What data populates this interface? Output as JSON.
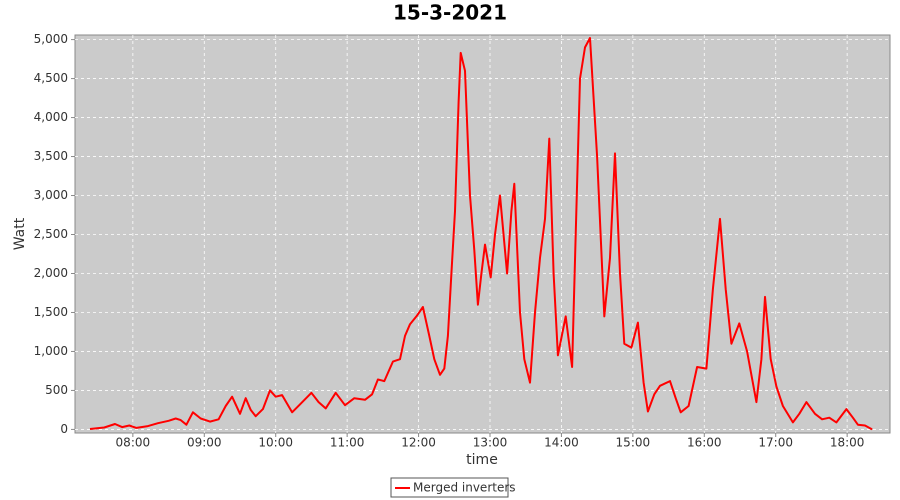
{
  "chart_data": {
    "type": "line",
    "title": "15-3-2021",
    "x_label": "time",
    "y_label": "Watt",
    "xlim": [
      7.19,
      18.6
    ],
    "xticks": [
      {
        "value": 8,
        "label": "08:00"
      },
      {
        "value": 9,
        "label": "09:00"
      },
      {
        "value": 10,
        "label": "10:00"
      },
      {
        "value": 11,
        "label": "11:00"
      },
      {
        "value": 12,
        "label": "12:00"
      },
      {
        "value": 13,
        "label": "13:00"
      },
      {
        "value": 14,
        "label": "14:00"
      },
      {
        "value": 15,
        "label": "15:00"
      },
      {
        "value": 16,
        "label": "16:00"
      },
      {
        "value": 17,
        "label": "17:00"
      },
      {
        "value": 18,
        "label": "18:00"
      }
    ],
    "ylim": [
      -46,
      5059
    ],
    "yticks": [
      0,
      500,
      {
        "value": 1000,
        "label": "1,000"
      },
      {
        "value": 1500,
        "label": "1,500"
      },
      {
        "value": 2000,
        "label": "2,000"
      },
      {
        "value": 2500,
        "label": "2,500"
      },
      {
        "value": 3000,
        "label": "3,000"
      },
      {
        "value": 3500,
        "label": "3,500"
      },
      {
        "value": 4000,
        "label": "4,000"
      },
      {
        "value": 4500,
        "label": "4,500"
      },
      {
        "value": 5000,
        "label": "5,000"
      }
    ],
    "grid": true,
    "legend": "bottom",
    "series": [
      {
        "name": "Merged inverters",
        "color": "#ff0000",
        "x": [
          7.4,
          7.5,
          7.6,
          7.75,
          7.85,
          7.95,
          8.05,
          8.2,
          8.35,
          8.5,
          8.6,
          8.67,
          8.75,
          8.84,
          8.95,
          9.08,
          9.2,
          9.3,
          9.39,
          9.5,
          9.58,
          9.65,
          9.72,
          9.82,
          9.92,
          10.0,
          10.09,
          10.23,
          10.35,
          10.5,
          10.6,
          10.7,
          10.84,
          10.97,
          11.1,
          11.25,
          11.35,
          11.43,
          11.52,
          11.64,
          11.74,
          11.81,
          11.88,
          11.97,
          12.06,
          12.15,
          12.22,
          12.3,
          12.36,
          12.41,
          12.46,
          12.51,
          12.56,
          12.59,
          12.65,
          12.72,
          12.78,
          12.83,
          12.88,
          12.93,
          13.01,
          13.07,
          13.14,
          13.24,
          13.3,
          13.34,
          13.42,
          13.48,
          13.56,
          13.63,
          13.7,
          13.77,
          13.83,
          13.89,
          13.95,
          14.06,
          14.15,
          14.2,
          14.26,
          14.33,
          14.4,
          14.5,
          14.6,
          14.68,
          14.75,
          14.82,
          14.88,
          14.98,
          15.07,
          15.15,
          15.21,
          15.3,
          15.38,
          15.52,
          15.6,
          15.67,
          15.78,
          15.9,
          16.03,
          16.12,
          16.22,
          16.3,
          16.38,
          16.49,
          16.6,
          16.73,
          16.8,
          16.85,
          16.93,
          17.01,
          17.1,
          17.24,
          17.33,
          17.43,
          17.55,
          17.65,
          17.75,
          17.85,
          17.99,
          18.08,
          18.15,
          18.25,
          18.35
        ],
        "values": [
          5,
          15,
          25,
          70,
          30,
          50,
          20,
          40,
          80,
          110,
          140,
          120,
          60,
          220,
          140,
          100,
          130,
          300,
          420,
          200,
          400,
          250,
          170,
          260,
          500,
          420,
          440,
          220,
          330,
          470,
          350,
          270,
          470,
          310,
          400,
          380,
          450,
          640,
          620,
          870,
          900,
          1200,
          1350,
          1450,
          1570,
          1200,
          900,
          700,
          780,
          1200,
          2000,
          2800,
          4200,
          4830,
          4600,
          3000,
          2300,
          1600,
          2000,
          2370,
          1950,
          2500,
          3000,
          2000,
          2800,
          3150,
          1500,
          900,
          600,
          1500,
          2200,
          2700,
          3730,
          2000,
          950,
          1450,
          800,
          2500,
          4500,
          4900,
          5020,
          3500,
          1450,
          2200,
          3540,
          2000,
          1100,
          1050,
          1370,
          600,
          230,
          450,
          560,
          620,
          400,
          220,
          300,
          800,
          780,
          1800,
          2700,
          1800,
          1100,
          1360,
          1000,
          350,
          900,
          1700,
          900,
          550,
          300,
          90,
          200,
          350,
          200,
          130,
          150,
          90,
          260,
          150,
          60,
          50,
          0
        ]
      }
    ]
  }
}
